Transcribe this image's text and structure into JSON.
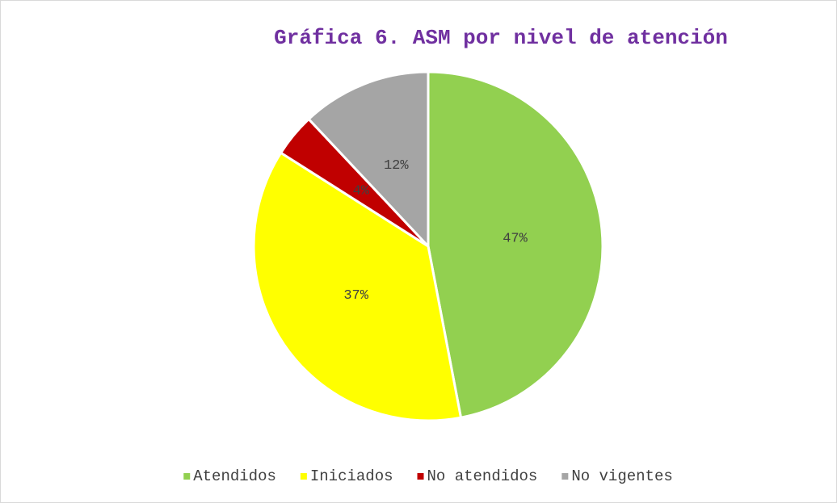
{
  "chart_data": {
    "type": "pie",
    "title": "Gráfica 6. ASM por nivel de atención",
    "categories": [
      "Atendidos",
      "Iniciados",
      "No atendidos",
      "No vigentes"
    ],
    "values": [
      47,
      37,
      4,
      12
    ],
    "value_labels": [
      "47%",
      "37%",
      "4%",
      "12%"
    ],
    "colors": [
      "#92d050",
      "#ffff00",
      "#c00000",
      "#a5a5a5"
    ],
    "legend": "bottom"
  }
}
